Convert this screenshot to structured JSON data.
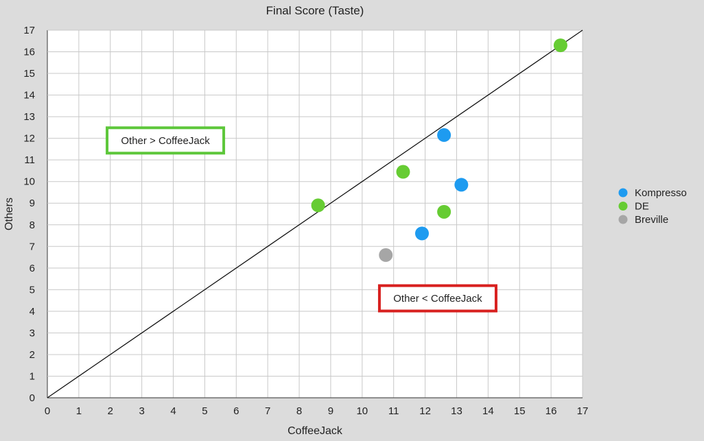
{
  "chart_data": {
    "type": "scatter",
    "title": "Final Score (Taste)",
    "xlabel": "CoffeeJack",
    "ylabel": "Others",
    "xlim": [
      0,
      17
    ],
    "ylim": [
      0,
      17
    ],
    "xticks": [
      0,
      1,
      2,
      3,
      4,
      5,
      6,
      7,
      8,
      9,
      10,
      11,
      12,
      13,
      14,
      15,
      16,
      17
    ],
    "yticks": [
      0,
      1,
      2,
      3,
      4,
      5,
      6,
      7,
      8,
      9,
      10,
      11,
      12,
      13,
      14,
      15,
      16,
      17
    ],
    "grid": true,
    "legend_position": "right",
    "series": [
      {
        "name": "Kompresso",
        "color": "#1e9bf0",
        "points": [
          {
            "x": 12.6,
            "y": 12.15
          },
          {
            "x": 13.15,
            "y": 9.85
          },
          {
            "x": 11.9,
            "y": 7.6
          }
        ]
      },
      {
        "name": "DE",
        "color": "#66cc33",
        "points": [
          {
            "x": 16.3,
            "y": 16.3
          },
          {
            "x": 11.3,
            "y": 10.45
          },
          {
            "x": 12.6,
            "y": 8.6
          },
          {
            "x": 8.6,
            "y": 8.9
          }
        ]
      },
      {
        "name": "Breville",
        "color": "#a6a6a6",
        "points": [
          {
            "x": 10.75,
            "y": 6.6
          }
        ]
      }
    ],
    "reference_line": {
      "from": [
        0,
        0
      ],
      "to": [
        17,
        17
      ],
      "color": "#111111"
    },
    "annotations": [
      {
        "text": "Other > CoffeeJack",
        "border_color": "#5dc73a",
        "x": 3.75,
        "y": 11.9
      },
      {
        "text": "Other < CoffeeJack",
        "border_color": "#d8201f",
        "x": 12.4,
        "y": 4.6
      }
    ]
  }
}
